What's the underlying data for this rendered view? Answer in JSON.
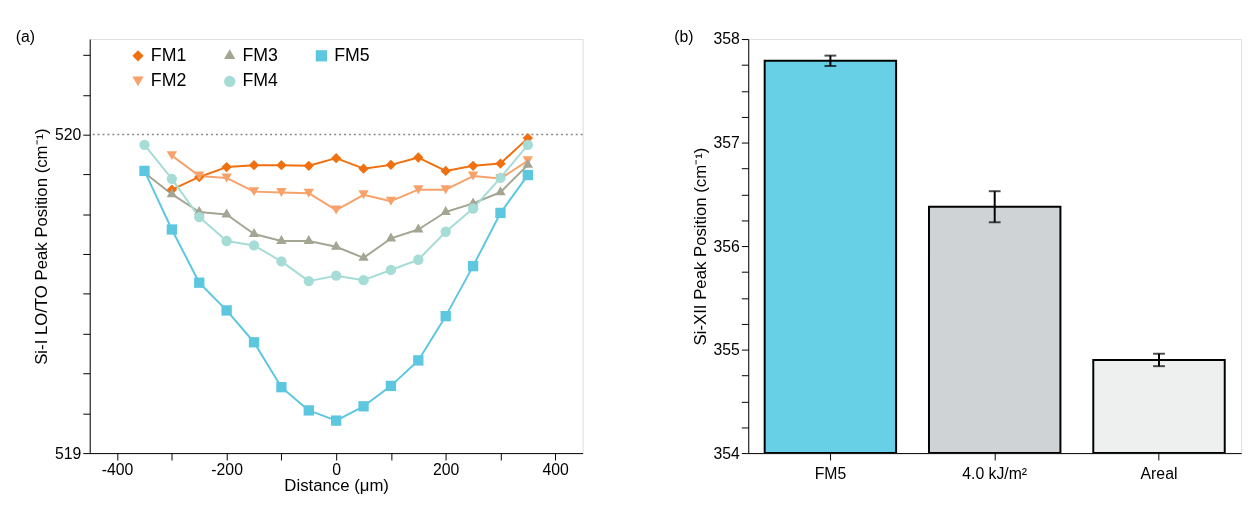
{
  "chart_data": [
    {
      "type": "line",
      "xlabel": "Distance (μm)",
      "ylabel": "Si-I LO/TO Peak Position (cm⁻¹)",
      "annotations": [
        "(a)"
      ],
      "xlim": [
        -450,
        450
      ],
      "xticks": [
        -400,
        {
          "value": -300,
          "label": null
        },
        -200,
        {
          "value": -100,
          "label": null
        },
        0,
        {
          "value": 100,
          "label": null
        },
        200,
        {
          "value": 300,
          "label": null
        },
        400
      ],
      "ylim": [
        519,
        520.3
      ],
      "yticks": [
        519,
        {
          "value": 519.125,
          "label": null
        },
        {
          "value": 519.25,
          "label": null
        },
        {
          "value": 519.375,
          "label": null
        },
        {
          "value": 519.5,
          "label": null
        },
        {
          "value": 519.625,
          "label": null
        },
        {
          "value": 519.75,
          "label": null
        },
        {
          "value": 519.875,
          "label": null
        },
        520,
        {
          "value": 520.125,
          "label": null
        },
        {
          "value": 520.25,
          "label": null
        }
      ],
      "grid": false,
      "legend": "top",
      "line_style": "solid",
      "ref_lines": [
        {
          "axis": "y",
          "value": 520,
          "color": "#888888",
          "line_style": "dotted"
        }
      ],
      "series": [
        {
          "name": "FM1",
          "color": "#f0700f",
          "marker": "diamond",
          "x": [
            -300,
            -250,
            -200,
            -150,
            -100,
            -50,
            0,
            50,
            100,
            150,
            200,
            250,
            300,
            350
          ],
          "values": [
            519.827,
            519.867,
            519.898,
            519.904,
            519.904,
            519.902,
            519.926,
            519.893,
            519.905,
            519.928,
            519.886,
            519.902,
            519.909,
            519.989
          ]
        },
        {
          "name": "FM2",
          "color": "#f6a26a",
          "marker": "triangle-down",
          "x": [
            -300,
            -250,
            -200,
            -150,
            -100,
            -50,
            0,
            50,
            100,
            150,
            200,
            250,
            300,
            350
          ],
          "values": [
            519.934,
            519.87,
            519.864,
            519.821,
            519.818,
            519.816,
            519.763,
            519.811,
            519.791,
            519.827,
            519.827,
            519.87,
            519.862,
            519.918
          ]
        },
        {
          "name": "FM3",
          "color": "#a4a592",
          "marker": "triangle",
          "x": [
            -350,
            -300,
            -250,
            -200,
            -150,
            -100,
            -50,
            0,
            50,
            100,
            150,
            200,
            250,
            300,
            350
          ],
          "values": [
            519.88,
            519.813,
            519.757,
            519.749,
            519.688,
            519.666,
            519.666,
            519.648,
            519.613,
            519.674,
            519.702,
            519.757,
            519.784,
            519.819,
            519.905
          ]
        },
        {
          "name": "FM4",
          "color": "#a6dcd6",
          "marker": "circle",
          "x": [
            -350,
            -300,
            -250,
            -200,
            -150,
            -100,
            -50,
            0,
            50,
            100,
            150,
            200,
            250,
            300,
            350
          ],
          "values": [
            519.968,
            519.861,
            519.741,
            519.666,
            519.652,
            519.602,
            519.54,
            519.557,
            519.543,
            519.575,
            519.607,
            519.695,
            519.768,
            519.864,
            519.968
          ]
        },
        {
          "name": "FM5",
          "color": "#5ec7e0",
          "marker": "square",
          "x": [
            -350,
            -300,
            -250,
            -200,
            -150,
            -100,
            -50,
            0,
            50,
            100,
            150,
            200,
            250,
            300,
            350
          ],
          "values": [
            519.886,
            519.702,
            519.535,
            519.448,
            519.348,
            519.207,
            519.134,
            519.102,
            519.147,
            519.211,
            519.291,
            519.43,
            519.587,
            519.754,
            519.873
          ]
        }
      ]
    },
    {
      "type": "bar",
      "ylabel": "Si-XII Peak Position (cm⁻¹)",
      "annotations": [
        "(b)"
      ],
      "categories": [
        "FM5",
        "4.0 kJ/m²",
        "Areal"
      ],
      "values": [
        357.79,
        356.38,
        354.9
      ],
      "errors": [
        0.05,
        0.15,
        0.06
      ],
      "colors": [
        "#68d0e6",
        "#d0d3d5",
        "#eeefef"
      ],
      "grid": false,
      "legend": false,
      "ylim": [
        354,
        358
      ],
      "yticks": [
        354,
        {
          "value": 354.25,
          "label": null
        },
        {
          "value": 354.5,
          "label": null
        },
        {
          "value": 354.75,
          "label": null
        },
        355,
        {
          "value": 355.25,
          "label": null
        },
        {
          "value": 355.5,
          "label": null
        },
        {
          "value": 355.75,
          "label": null
        },
        356,
        {
          "value": 356.25,
          "label": null
        },
        {
          "value": 356.5,
          "label": null
        },
        {
          "value": 356.75,
          "label": null
        },
        357,
        {
          "value": 357.25,
          "label": null
        },
        {
          "value": 357.5,
          "label": null
        },
        {
          "value": 357.75,
          "label": null
        },
        358
      ]
    }
  ]
}
